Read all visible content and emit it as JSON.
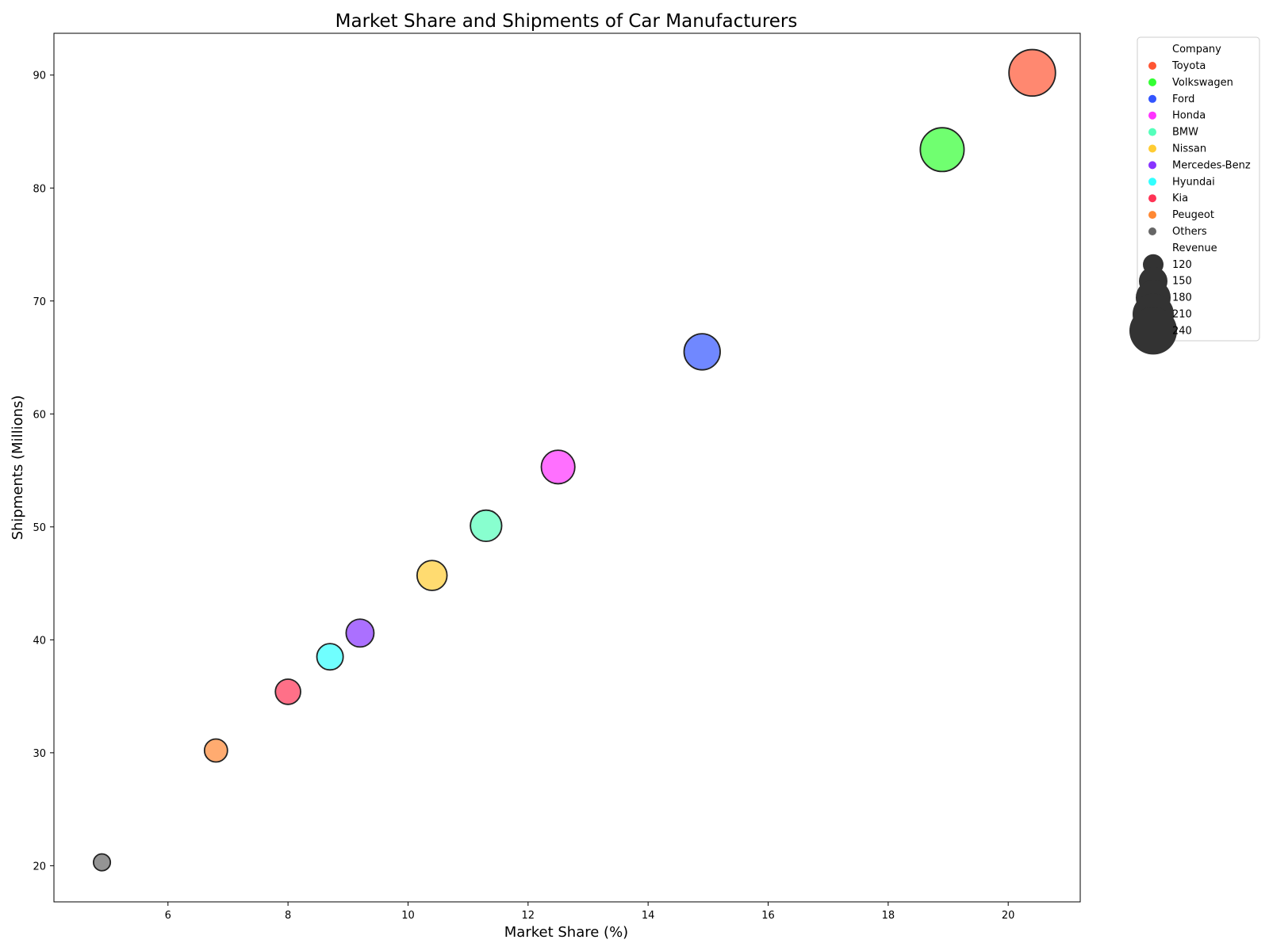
{
  "chart_data": {
    "type": "scatter",
    "title": "Market Share and Shipments of Car Manufacturers",
    "xlabel": "Market Share (%)",
    "ylabel": "Shipments (Millions)",
    "xlim": [
      4.1,
      21.2
    ],
    "ylim": [
      16.8,
      93.7
    ],
    "xticks": [
      6,
      8,
      10,
      12,
      14,
      16,
      18,
      20
    ],
    "yticks": [
      20,
      30,
      40,
      50,
      60,
      70,
      80,
      90
    ],
    "grid": false,
    "legend_position": "outside-top-right",
    "legend_hue_title": "Company",
    "legend_size_title": "Revenue",
    "size_legend_values": [
      120,
      150,
      180,
      210,
      240
    ],
    "series": [
      {
        "name": "Toyota",
        "x": 20.4,
        "y": 90.2,
        "revenue": 265,
        "color": "#ff5533"
      },
      {
        "name": "Volkswagen",
        "x": 18.9,
        "y": 83.4,
        "revenue": 235,
        "color": "#33ff33"
      },
      {
        "name": "Ford",
        "x": 14.9,
        "y": 65.5,
        "revenue": 160,
        "color": "#3355ff"
      },
      {
        "name": "Honda",
        "x": 12.5,
        "y": 55.3,
        "revenue": 138,
        "color": "#ff33ff"
      },
      {
        "name": "BMW",
        "x": 11.3,
        "y": 50.1,
        "revenue": 120,
        "color": "#55ffbb"
      },
      {
        "name": "Nissan",
        "x": 10.4,
        "y": 45.7,
        "revenue": 110,
        "color": "#ffcc33"
      },
      {
        "name": "Mercedes-Benz",
        "x": 9.2,
        "y": 40.6,
        "revenue": 95,
        "color": "#8833ff"
      },
      {
        "name": "Hyundai",
        "x": 8.7,
        "y": 38.5,
        "revenue": 85,
        "color": "#33ffff"
      },
      {
        "name": "Kia",
        "x": 8.0,
        "y": 35.4,
        "revenue": 78,
        "color": "#ff3355"
      },
      {
        "name": "Peugeot",
        "x": 6.8,
        "y": 30.2,
        "revenue": 65,
        "color": "#ff8833"
      },
      {
        "name": "Others",
        "x": 4.9,
        "y": 20.3,
        "revenue": 35,
        "color": "#666666"
      }
    ]
  }
}
